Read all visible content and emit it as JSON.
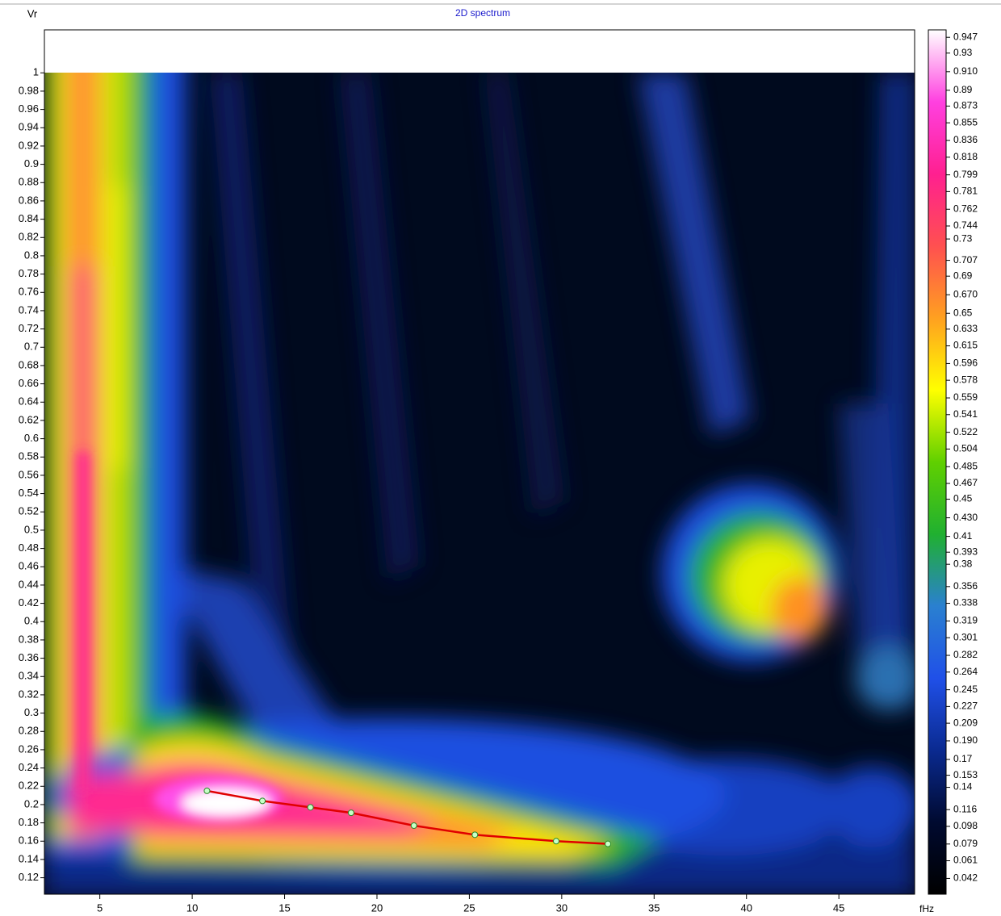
{
  "chart_data": {
    "type": "heatmap",
    "title": "2D spectrum",
    "y_label": "Vr",
    "x_label": "fHz",
    "xlim": [
      2,
      49.1
    ],
    "xticks": [
      5,
      10,
      15,
      20,
      25,
      30,
      35,
      40,
      45
    ],
    "ylim": [
      0.102,
      1.047
    ],
    "yticks": [
      0.12,
      0.14,
      0.16,
      0.18,
      0.2,
      0.22,
      0.24,
      0.26,
      0.28,
      0.3,
      0.32,
      0.34,
      0.36,
      0.38,
      0.4,
      0.42,
      0.44,
      0.46,
      0.48,
      0.5,
      0.52,
      0.54,
      0.56,
      0.58,
      0.6,
      0.62,
      0.64,
      0.66,
      0.68,
      0.7,
      0.72,
      0.74,
      0.76,
      0.78,
      0.8,
      0.82,
      0.84,
      0.86,
      0.88,
      0.9,
      0.92,
      0.94,
      0.96,
      0.98,
      1
    ],
    "zlim": [
      0.025,
      0.955
    ],
    "zticks": [
      0.947,
      0.93,
      {
        "value": 0.91,
        "label": "0.910"
      },
      0.89,
      0.873,
      0.855,
      0.836,
      0.818,
      0.799,
      0.781,
      0.762,
      0.744,
      0.73,
      0.707,
      0.69,
      {
        "value": 0.67,
        "label": "0.670"
      },
      0.65,
      0.633,
      0.615,
      0.596,
      0.578,
      0.559,
      0.541,
      0.522,
      0.504,
      0.485,
      0.467,
      0.45,
      {
        "value": 0.43,
        "label": "0.430"
      },
      0.41,
      0.393,
      0.38,
      0.356,
      0.338,
      0.319,
      0.301,
      0.282,
      0.264,
      0.245,
      0.227,
      0.209,
      {
        "value": 0.19,
        "label": "0.190"
      },
      0.17,
      0.153,
      0.14,
      0.116,
      0.098,
      0.079,
      0.061,
      0.042
    ],
    "colorscale": [
      "#000000",
      "#000a30",
      "#0a2a90",
      "#2050e8",
      "#2a80d0",
      "#20b030",
      "#60d000",
      "#ffff00",
      "#ffa020",
      "#ff5050",
      "#ff2090",
      "#ff40e0",
      "#ffffff"
    ],
    "x": [
      10.8,
      13.8,
      16.4,
      18.6,
      22,
      25.3,
      29.7,
      32.5
    ],
    "values": [
      0.215,
      0.204,
      0.197,
      0.191,
      0.177,
      0.167,
      0.16,
      0.157
    ],
    "line_color": "#e00000",
    "marker_color": "#c8ffc8"
  }
}
